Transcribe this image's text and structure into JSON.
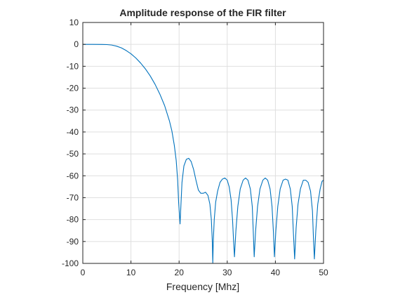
{
  "chart_data": {
    "type": "line",
    "title": "Amplitude response of the FIR filter",
    "xlabel": "Frequency [Mhz]",
    "ylabel": "",
    "xlim": [
      0,
      50
    ],
    "ylim": [
      -100,
      10
    ],
    "xticks": [
      0,
      10,
      20,
      30,
      40,
      50
    ],
    "yticks": [
      -100,
      -90,
      -80,
      -70,
      -60,
      -50,
      -40,
      -30,
      -20,
      -10,
      0,
      10
    ],
    "grid": true,
    "series_color": "#0072BD",
    "series": [
      {
        "x": [
          0,
          2,
          4,
          5,
          6,
          7,
          8,
          9,
          10,
          11,
          12,
          13,
          14,
          15,
          16,
          17,
          18,
          18.5,
          19,
          19.4,
          19.7,
          19.9,
          20.2,
          20.6,
          21,
          21.5,
          22,
          22.5,
          23,
          23.5,
          24,
          24.5,
          25,
          25.5,
          26,
          26.4,
          26.7,
          26.9,
          27,
          27.1,
          27.3,
          27.6,
          28,
          28.5,
          29,
          29.5,
          30,
          30.4,
          30.8,
          31.1,
          31.3,
          31.5,
          31.8,
          32.2,
          32.7,
          33.3,
          33.8,
          34.3,
          34.8,
          35.2,
          35.4,
          35.6,
          35.9,
          36.3,
          36.8,
          37.4,
          37.9,
          38.4,
          38.9,
          39.3,
          39.6,
          39.8,
          40.1,
          40.5,
          41,
          41.6,
          42.1,
          42.6,
          43.1,
          43.5,
          43.7,
          44,
          44.3,
          44.7,
          45.2,
          45.8,
          46.3,
          46.8,
          47.3,
          47.7,
          47.9,
          48.1,
          48.4,
          48.8,
          49.3,
          49.7,
          50
        ],
        "y": [
          0,
          0,
          -0.05,
          -0.1,
          -0.3,
          -0.8,
          -1.6,
          -2.8,
          -4.3,
          -6.2,
          -8.5,
          -11.2,
          -14.4,
          -18.2,
          -22.7,
          -28,
          -35,
          -39.5,
          -46,
          -53,
          -62,
          -72,
          -82,
          -63,
          -55.5,
          -52.5,
          -52,
          -53.5,
          -57,
          -62,
          -66.5,
          -68,
          -68,
          -67.5,
          -69,
          -73,
          -80,
          -90,
          -100,
          -90,
          -80,
          -72,
          -67,
          -63,
          -61.5,
          -61,
          -62,
          -65,
          -71,
          -80,
          -89,
          -97,
          -85,
          -74,
          -66,
          -62,
          -61,
          -62,
          -66,
          -74,
          -85,
          -97,
          -85,
          -74,
          -66,
          -62,
          -61,
          -62,
          -66,
          -74,
          -86,
          -97,
          -85,
          -74,
          -66,
          -62,
          -61.5,
          -62,
          -66,
          -74,
          -84,
          -98,
          -84,
          -73,
          -66,
          -62,
          -62,
          -63,
          -67,
          -76,
          -88,
          -98,
          -85,
          -73,
          -66,
          -62.5,
          -62
        ]
      }
    ]
  }
}
